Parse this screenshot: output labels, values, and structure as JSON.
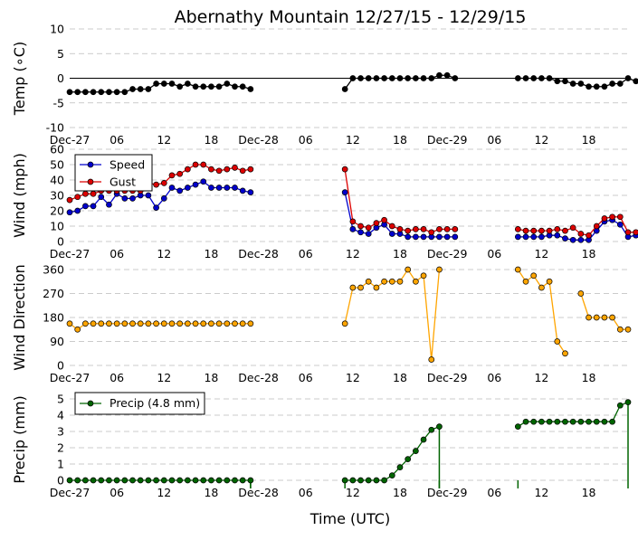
{
  "title": "Abernathy Mountain 12/27/15 - 12/29/15",
  "xlabel": "Time (UTC)",
  "x_ticks": [
    {
      "h": 0,
      "label": "Dec-27"
    },
    {
      "h": 6,
      "label": "06"
    },
    {
      "h": 12,
      "label": "12"
    },
    {
      "h": 18,
      "label": "18"
    },
    {
      "h": 24,
      "label": "Dec-28"
    },
    {
      "h": 30,
      "label": "06"
    },
    {
      "h": 36,
      "label": "12"
    },
    {
      "h": 42,
      "label": "18"
    },
    {
      "h": 48,
      "label": "Dec-29"
    },
    {
      "h": 54,
      "label": "06"
    },
    {
      "h": 60,
      "label": "12"
    },
    {
      "h": 66,
      "label": "18"
    }
  ],
  "chart_data": [
    {
      "type": "line",
      "id": "temp",
      "ylabel": "Temp ($^∘$C)",
      "ylabel_text": "Temp (∘C)",
      "ylim": [
        -10,
        10
      ],
      "yticks": [
        -10,
        -5,
        0,
        5,
        10
      ],
      "xlim": [
        0,
        71
      ],
      "zero_line": true,
      "series": [
        {
          "name": "Temp",
          "color": "#000000",
          "segments": [
            {
              "x0": 0,
              "values": [
                -2.8,
                -2.8,
                -2.8,
                -2.8,
                -2.8,
                -2.8,
                -2.8,
                -2.8,
                -2.2,
                -2.2,
                -2.2,
                -1.1,
                -1.1,
                -1.1,
                -1.7,
                -1.1,
                -1.7,
                -1.7,
                -1.7,
                -1.7,
                -1.1,
                -1.7,
                -1.7,
                -2.2
              ]
            },
            {
              "x0": 35,
              "values": [
                -2.2,
                0,
                0,
                0,
                0,
                0,
                0,
                0,
                0,
                0,
                0,
                0,
                0.6,
                0.6,
                0
              ]
            },
            {
              "x0": 57,
              "values": [
                0,
                0,
                0,
                0,
                0,
                -0.6,
                -0.6,
                -1.1,
                -1.1,
                -1.7,
                -1.7,
                -1.7,
                -1.1,
                -1.1,
                0,
                -0.6
              ]
            }
          ]
        }
      ]
    },
    {
      "type": "line",
      "id": "wind",
      "ylabel": "Wind (mph)",
      "ylim": [
        0,
        60
      ],
      "yticks": [
        0,
        10,
        20,
        30,
        40,
        50,
        60
      ],
      "xlim": [
        0,
        71
      ],
      "legend": "top-left",
      "series": [
        {
          "name": "Speed",
          "color": "#0000cc",
          "segments": [
            {
              "x0": 0,
              "values": [
                19,
                20,
                23,
                23,
                29,
                24,
                31,
                28,
                28,
                30,
                30,
                22,
                28,
                35,
                33,
                35,
                37,
                39,
                35,
                35,
                35,
                35,
                33,
                32
              ]
            },
            {
              "x0": 35,
              "values": [
                32,
                8,
                6,
                5,
                9,
                11,
                5,
                5,
                3,
                3,
                3,
                3,
                3,
                3,
                3
              ]
            },
            {
              "x0": 57,
              "values": [
                3,
                3,
                3,
                3,
                4,
                4,
                2,
                1,
                1,
                1,
                7,
                13,
                14,
                11,
                3,
                4
              ]
            }
          ]
        },
        {
          "name": "Gust",
          "color": "#dd0000",
          "segments": [
            {
              "x0": 0,
              "values": [
                27,
                29,
                31,
                31,
                33,
                33,
                33,
                33,
                33,
                33,
                38,
                37,
                38,
                43,
                44,
                47,
                50,
                50,
                47,
                46,
                47,
                48,
                46,
                47
              ]
            },
            {
              "x0": 35,
              "values": [
                47,
                13,
                10,
                9,
                12,
                14,
                10,
                8,
                7,
                8,
                8,
                6,
                8,
                8,
                8
              ]
            },
            {
              "x0": 57,
              "values": [
                8,
                7,
                7,
                7,
                7,
                8,
                7,
                9,
                5,
                4,
                10,
                15,
                16,
                16,
                6,
                6
              ]
            }
          ]
        }
      ]
    },
    {
      "type": "line",
      "id": "dir",
      "ylabel": "Wind Direction",
      "ylim": [
        0,
        360
      ],
      "yticks": [
        0,
        90,
        180,
        270,
        360
      ],
      "xlim": [
        0,
        71
      ],
      "series": [
        {
          "name": "Direction",
          "color": "#ffa500",
          "segments": [
            {
              "x0": 0,
              "values": [
                157,
                135,
                157,
                157,
                157,
                157,
                157,
                157,
                157,
                157,
                157,
                157,
                157,
                157,
                157,
                157,
                157,
                157,
                157,
                157,
                157,
                157,
                157,
                157
              ]
            },
            {
              "x0": 35,
              "values": [
                157,
                292,
                292,
                315,
                292,
                315,
                315,
                315,
                360,
                315,
                337,
                22,
                360
              ]
            },
            {
              "x0": 57,
              "values": [
                360,
                315,
                337,
                292,
                315,
                90,
                45
              ]
            },
            {
              "x0": 65,
              "values": [
                270,
                180,
                180,
                180,
                180,
                135,
                135
              ]
            }
          ]
        }
      ]
    },
    {
      "type": "line",
      "id": "precip",
      "ylabel": "Precip (mm)",
      "ylim": [
        0,
        5
      ],
      "yticks": [
        0,
        1,
        2,
        3,
        4,
        5
      ],
      "xlim": [
        0,
        71
      ],
      "legend": "top-left",
      "drop_lines": [
        23,
        35,
        47,
        57
      ],
      "series": [
        {
          "name": "Precip (4.8 mm)",
          "color": "#006400",
          "segments": [
            {
              "x0": 0,
              "values": [
                0,
                0,
                0,
                0,
                0,
                0,
                0,
                0,
                0,
                0,
                0,
                0,
                0,
                0,
                0,
                0,
                0,
                0,
                0,
                0,
                0,
                0,
                0,
                0
              ]
            },
            {
              "x0": 35,
              "values": [
                0,
                0,
                0,
                0,
                0,
                0,
                0.3,
                0.8,
                1.3,
                1.8,
                2.5,
                3.1,
                3.3
              ]
            },
            {
              "x0": 57,
              "values": [
                3.3,
                3.6,
                3.6,
                3.6,
                3.6,
                3.6,
                3.6,
                3.6,
                3.6,
                3.6,
                3.6,
                3.6,
                3.6,
                4.6,
                4.8
              ]
            }
          ]
        }
      ]
    }
  ]
}
